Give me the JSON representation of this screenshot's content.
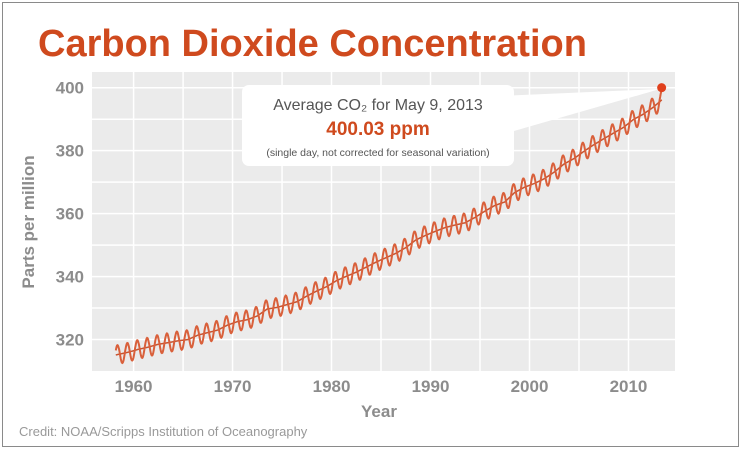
{
  "chart_data": {
    "type": "line",
    "title": "Carbon Dioxide Concentration",
    "xlabel": "Year",
    "ylabel": "Parts per million",
    "xlim": [
      1955.8,
      2014.7
    ],
    "ylim": [
      310,
      405
    ],
    "grid": true,
    "x_ticks": [
      1960,
      1970,
      1980,
      1990,
      2000,
      2010
    ],
    "y_ticks": [
      320,
      340,
      360,
      380,
      400
    ],
    "series_color": "#d9603b",
    "trend_color": "#c8532f",
    "seasonal_amplitude_ppm": 3,
    "annual_mean": {
      "years": [
        1958,
        1959,
        1960,
        1961,
        1962,
        1963,
        1964,
        1965,
        1966,
        1967,
        1968,
        1969,
        1970,
        1971,
        1972,
        1973,
        1974,
        1975,
        1976,
        1977,
        1978,
        1979,
        1980,
        1981,
        1982,
        1983,
        1984,
        1985,
        1986,
        1987,
        1988,
        1989,
        1990,
        1991,
        1992,
        1993,
        1994,
        1995,
        1996,
        1997,
        1998,
        1999,
        2000,
        2001,
        2002,
        2003,
        2004,
        2005,
        2006,
        2007,
        2008,
        2009,
        2010,
        2011,
        2012,
        2013
      ],
      "ppm": [
        315.3,
        316.0,
        316.9,
        317.6,
        318.5,
        319.0,
        319.6,
        320.0,
        321.4,
        322.2,
        323.0,
        324.6,
        325.7,
        326.3,
        327.5,
        329.7,
        330.2,
        331.1,
        332.0,
        333.8,
        335.4,
        336.8,
        338.7,
        340.1,
        341.4,
        343.0,
        344.6,
        346.0,
        347.4,
        349.2,
        351.6,
        353.1,
        354.4,
        355.6,
        356.4,
        357.1,
        358.8,
        360.8,
        362.6,
        363.7,
        366.7,
        368.4,
        369.6,
        371.1,
        373.2,
        375.8,
        377.5,
        379.8,
        381.9,
        383.8,
        385.6,
        387.4,
        389.9,
        391.6,
        393.8,
        396.5
      ]
    },
    "highlight": {
      "x": 2013.35,
      "y": 400.03,
      "color": "#e0401c"
    },
    "annotation": {
      "line1": "Average CO₂ for May 9, 2013",
      "value": "400.03 ppm",
      "note": "(single day, not corrected for seasonal variation)"
    }
  },
  "credit": "Credit: NOAA/Scripps Institution of Oceanography"
}
